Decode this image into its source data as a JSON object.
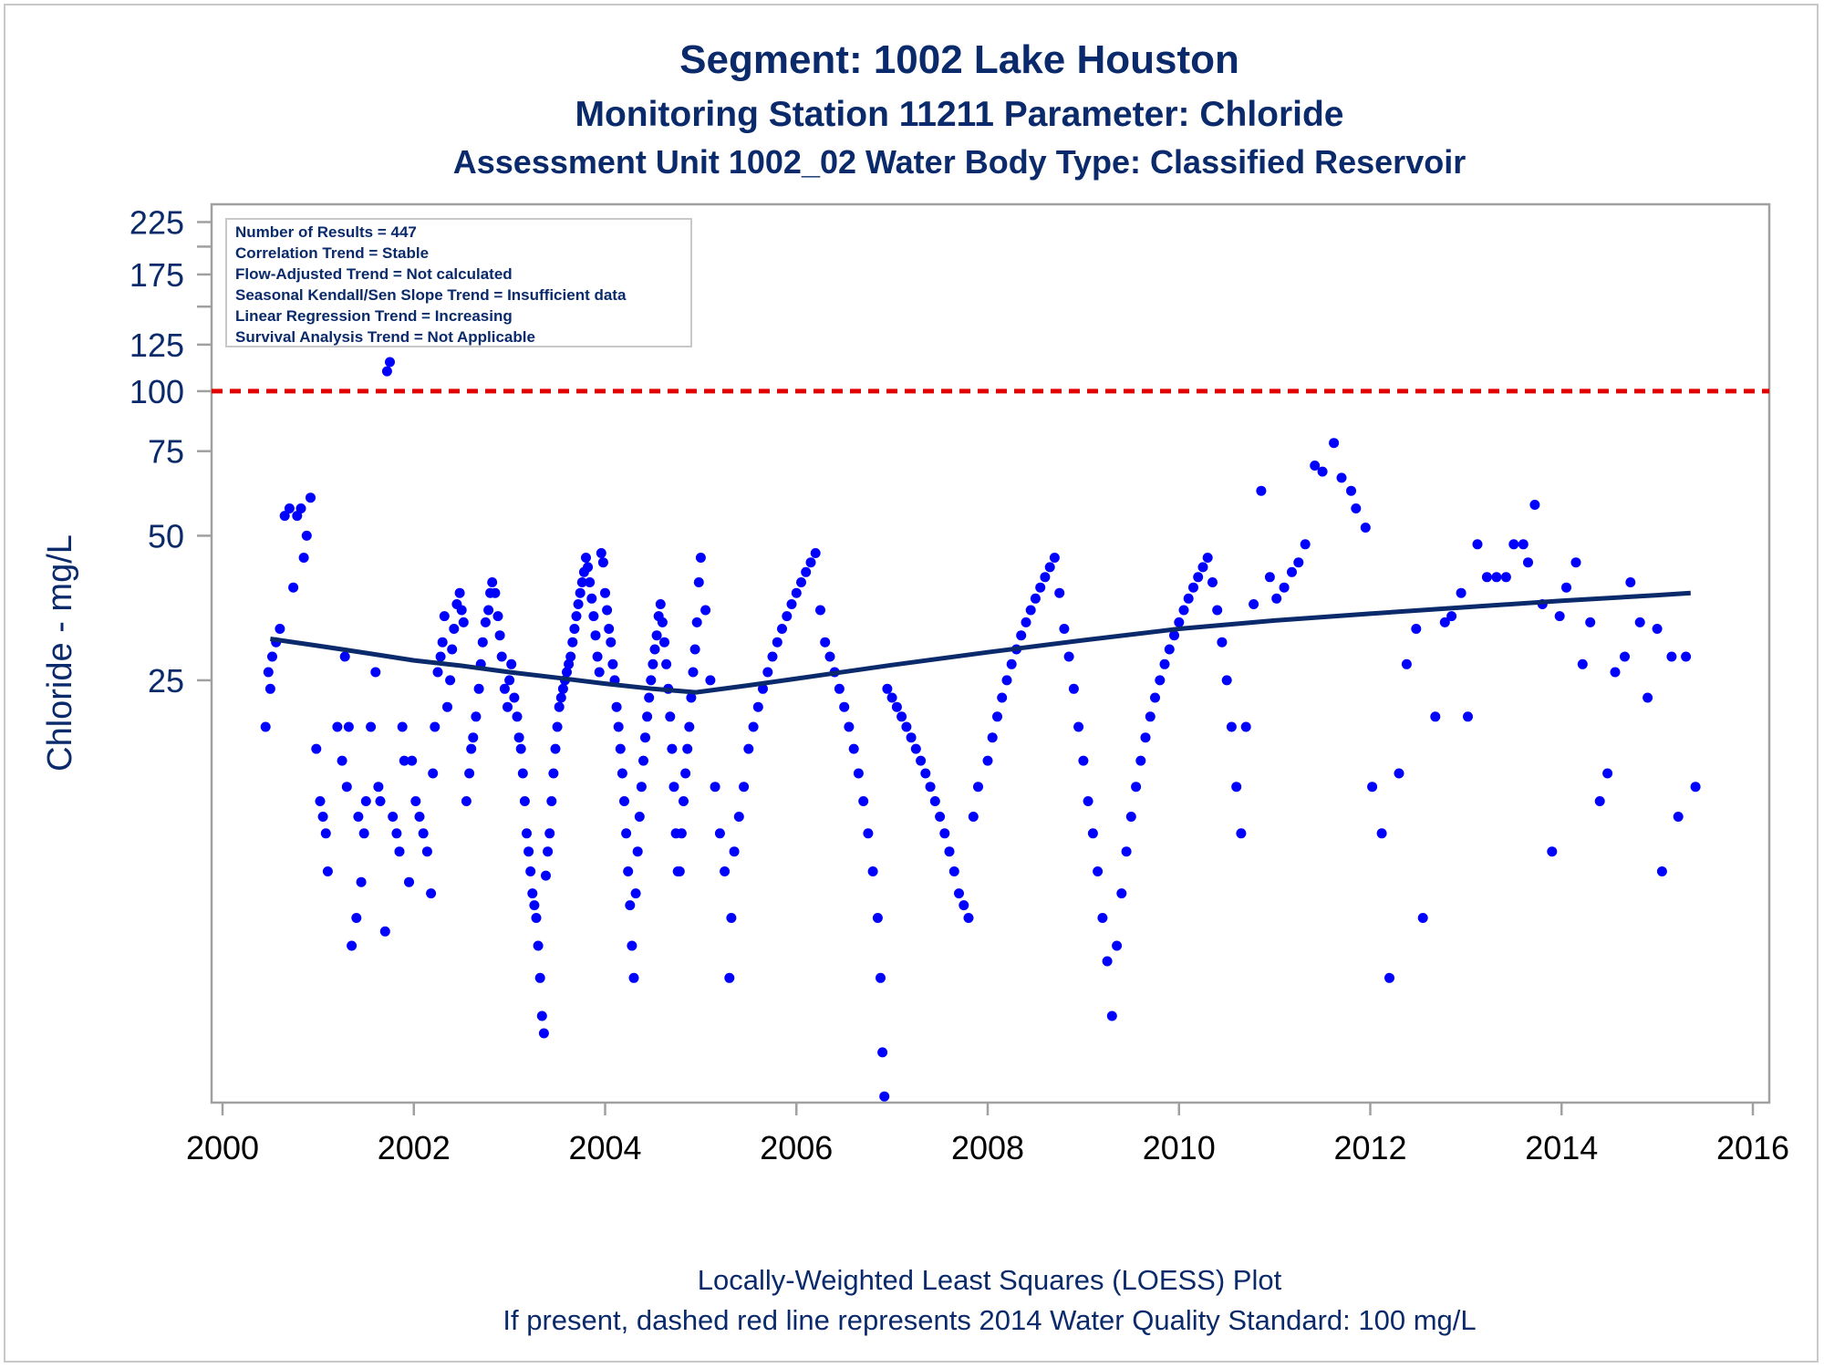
{
  "colors": {
    "title": "#0a2a6b",
    "points": "#0000ff",
    "loess": "#0a2a6b",
    "standard": "#e00000",
    "frame": "#a0a0a0"
  },
  "info_box": [
    "Number of Results = 447",
    "Correlation Trend = Stable",
    "Flow-Adjusted Trend = Not calculated",
    "Seasonal Kendall/Sen Slope Trend = Insufficient data",
    "Linear Regression Trend = Increasing",
    "Survival Analysis Trend = Not Applicable"
  ],
  "footer": {
    "line1": "Locally-Weighted Least Squares (LOESS) Plot",
    "line2": "If present, dashed red line represents 2014 Water Quality Standard: 100    mg/L"
  },
  "chart_data": {
    "type": "scatter",
    "title": "Segment: 1002  Lake Houston",
    "subtitle": "Monitoring Station 11211 Parameter: Chloride",
    "subtitle2": "Assessment Unit 1002_02   Water Body Type: Classified Reservoir",
    "xlabel": "",
    "ylabel": "Chloride - mg/L",
    "y_scale": "log",
    "xlim": [
      2000,
      2016
    ],
    "ylim": [
      3.3,
      245
    ],
    "x_ticks": [
      2000,
      2002,
      2004,
      2006,
      2008,
      2010,
      2012,
      2014,
      2016
    ],
    "y_ticks": [
      25,
      50,
      75,
      100,
      125,
      175,
      225
    ],
    "y_minor_ticks": [
      150,
      200
    ],
    "grid": false,
    "reference_line": {
      "value": 100,
      "style": "dashed"
    },
    "loess": {
      "x": [
        2000.5,
        2001.0,
        2001.5,
        2002.0,
        2002.5,
        2003.0,
        2003.5,
        2004.0,
        2004.5,
        2004.95,
        2005.5,
        2006.0,
        2007.0,
        2008.0,
        2009.0,
        2010.0,
        2011.0,
        2012.0,
        2013.0,
        2014.0,
        2015.0,
        2015.35
      ],
      "y": [
        30.5,
        29.5,
        28.5,
        27.5,
        26.8,
        26.0,
        25.3,
        24.6,
        24.0,
        23.6,
        24.4,
        25.2,
        26.9,
        28.6,
        30.3,
        32.0,
        33.3,
        34.4,
        35.5,
        36.6,
        37.6,
        38.0
      ]
    },
    "points": [
      [
        2000.45,
        20
      ],
      [
        2000.48,
        26
      ],
      [
        2000.5,
        24
      ],
      [
        2000.52,
        28
      ],
      [
        2000.56,
        30
      ],
      [
        2000.6,
        32
      ],
      [
        2000.65,
        55
      ],
      [
        2000.7,
        57
      ],
      [
        2000.74,
        39
      ],
      [
        2000.78,
        55
      ],
      [
        2000.82,
        57
      ],
      [
        2000.85,
        45
      ],
      [
        2000.88,
        50
      ],
      [
        2000.92,
        60
      ],
      [
        2000.98,
        18
      ],
      [
        2001.02,
        14
      ],
      [
        2001.05,
        13
      ],
      [
        2001.08,
        12
      ],
      [
        2001.1,
        10
      ],
      [
        2001.2,
        20
      ],
      [
        2001.25,
        17
      ],
      [
        2001.28,
        28
      ],
      [
        2001.3,
        15
      ],
      [
        2001.32,
        20
      ],
      [
        2001.35,
        7
      ],
      [
        2001.4,
        8
      ],
      [
        2001.42,
        13
      ],
      [
        2001.45,
        9.5
      ],
      [
        2001.48,
        12
      ],
      [
        2001.5,
        14
      ],
      [
        2001.55,
        20
      ],
      [
        2001.6,
        26
      ],
      [
        2001.63,
        15
      ],
      [
        2001.65,
        14
      ],
      [
        2001.7,
        7.5
      ],
      [
        2001.72,
        110
      ],
      [
        2001.75,
        115
      ],
      [
        2001.78,
        13
      ],
      [
        2001.82,
        12
      ],
      [
        2001.85,
        11
      ],
      [
        2001.88,
        20
      ],
      [
        2001.9,
        17
      ],
      [
        2001.95,
        9.5
      ],
      [
        2001.98,
        17
      ],
      [
        2002.02,
        14
      ],
      [
        2002.06,
        13
      ],
      [
        2002.1,
        12
      ],
      [
        2002.14,
        11
      ],
      [
        2002.18,
        9
      ],
      [
        2002.2,
        16
      ],
      [
        2002.22,
        20
      ],
      [
        2002.25,
        26
      ],
      [
        2002.28,
        28
      ],
      [
        2002.3,
        30
      ],
      [
        2002.32,
        34
      ],
      [
        2002.35,
        22
      ],
      [
        2002.38,
        25
      ],
      [
        2002.4,
        29
      ],
      [
        2002.42,
        32
      ],
      [
        2002.45,
        36
      ],
      [
        2002.48,
        38
      ],
      [
        2002.5,
        35
      ],
      [
        2002.52,
        33
      ],
      [
        2002.55,
        14
      ],
      [
        2002.58,
        16
      ],
      [
        2002.6,
        18
      ],
      [
        2002.62,
        19
      ],
      [
        2002.65,
        21
      ],
      [
        2002.68,
        24
      ],
      [
        2002.7,
        27
      ],
      [
        2002.72,
        30
      ],
      [
        2002.75,
        33
      ],
      [
        2002.78,
        35
      ],
      [
        2002.8,
        38
      ],
      [
        2002.82,
        40
      ],
      [
        2002.85,
        38
      ],
      [
        2002.88,
        34
      ],
      [
        2002.9,
        31
      ],
      [
        2002.92,
        28
      ],
      [
        2002.95,
        24
      ],
      [
        2002.98,
        22
      ],
      [
        2003.0,
        25
      ],
      [
        2003.02,
        27
      ],
      [
        2003.05,
        23
      ],
      [
        2003.08,
        21
      ],
      [
        2003.1,
        19
      ],
      [
        2003.12,
        18
      ],
      [
        2003.14,
        16
      ],
      [
        2003.16,
        14
      ],
      [
        2003.18,
        12
      ],
      [
        2003.2,
        11
      ],
      [
        2003.22,
        10
      ],
      [
        2003.24,
        9
      ],
      [
        2003.26,
        8.5
      ],
      [
        2003.28,
        8
      ],
      [
        2003.3,
        7
      ],
      [
        2003.32,
        6
      ],
      [
        2003.34,
        5
      ],
      [
        2003.36,
        4.6
      ],
      [
        2003.38,
        9.8
      ],
      [
        2003.4,
        11
      ],
      [
        2003.42,
        12
      ],
      [
        2003.44,
        14
      ],
      [
        2003.46,
        16
      ],
      [
        2003.48,
        18
      ],
      [
        2003.5,
        20
      ],
      [
        2003.52,
        22
      ],
      [
        2003.54,
        23
      ],
      [
        2003.56,
        24
      ],
      [
        2003.58,
        25
      ],
      [
        2003.6,
        26
      ],
      [
        2003.62,
        27
      ],
      [
        2003.64,
        28
      ],
      [
        2003.66,
        30
      ],
      [
        2003.68,
        32
      ],
      [
        2003.7,
        34
      ],
      [
        2003.72,
        36
      ],
      [
        2003.74,
        38
      ],
      [
        2003.76,
        40
      ],
      [
        2003.78,
        42
      ],
      [
        2003.8,
        45
      ],
      [
        2003.82,
        43
      ],
      [
        2003.84,
        40
      ],
      [
        2003.86,
        37
      ],
      [
        2003.88,
        34
      ],
      [
        2003.9,
        31
      ],
      [
        2003.92,
        28
      ],
      [
        2003.94,
        26
      ],
      [
        2003.96,
        46
      ],
      [
        2003.98,
        44
      ],
      [
        2004.0,
        38
      ],
      [
        2004.02,
        35
      ],
      [
        2004.04,
        32
      ],
      [
        2004.06,
        30
      ],
      [
        2004.08,
        27
      ],
      [
        2004.1,
        25
      ],
      [
        2004.12,
        22
      ],
      [
        2004.14,
        20
      ],
      [
        2004.16,
        18
      ],
      [
        2004.18,
        16
      ],
      [
        2004.2,
        14
      ],
      [
        2004.22,
        12
      ],
      [
        2004.24,
        10
      ],
      [
        2004.26,
        8.5
      ],
      [
        2004.28,
        7
      ],
      [
        2004.3,
        6
      ],
      [
        2004.32,
        9
      ],
      [
        2004.34,
        11
      ],
      [
        2004.36,
        13
      ],
      [
        2004.38,
        15
      ],
      [
        2004.4,
        17
      ],
      [
        2004.42,
        19
      ],
      [
        2004.44,
        21
      ],
      [
        2004.46,
        23
      ],
      [
        2004.48,
        25
      ],
      [
        2004.5,
        27
      ],
      [
        2004.52,
        29
      ],
      [
        2004.54,
        31
      ],
      [
        2004.56,
        34
      ],
      [
        2004.58,
        36
      ],
      [
        2004.6,
        33
      ],
      [
        2004.62,
        30
      ],
      [
        2004.64,
        27
      ],
      [
        2004.66,
        24
      ],
      [
        2004.68,
        21
      ],
      [
        2004.7,
        18
      ],
      [
        2004.72,
        15
      ],
      [
        2004.74,
        12
      ],
      [
        2004.76,
        10
      ],
      [
        2004.78,
        10
      ],
      [
        2004.8,
        12
      ],
      [
        2004.82,
        14
      ],
      [
        2004.84,
        16
      ],
      [
        2004.86,
        18
      ],
      [
        2004.88,
        20
      ],
      [
        2004.9,
        23
      ],
      [
        2004.92,
        26
      ],
      [
        2004.94,
        29
      ],
      [
        2004.96,
        33
      ],
      [
        2004.98,
        40
      ],
      [
        2005.0,
        45
      ],
      [
        2005.05,
        35
      ],
      [
        2005.1,
        25
      ],
      [
        2005.15,
        15
      ],
      [
        2005.2,
        12
      ],
      [
        2005.25,
        10
      ],
      [
        2005.3,
        6
      ],
      [
        2005.32,
        8
      ],
      [
        2005.35,
        11
      ],
      [
        2005.4,
        13
      ],
      [
        2005.45,
        15
      ],
      [
        2005.5,
        18
      ],
      [
        2005.55,
        20
      ],
      [
        2005.6,
        22
      ],
      [
        2005.65,
        24
      ],
      [
        2005.7,
        26
      ],
      [
        2005.75,
        28
      ],
      [
        2005.8,
        30
      ],
      [
        2005.85,
        32
      ],
      [
        2005.9,
        34
      ],
      [
        2005.95,
        36
      ],
      [
        2006.0,
        38
      ],
      [
        2006.05,
        40
      ],
      [
        2006.1,
        42
      ],
      [
        2006.15,
        44
      ],
      [
        2006.2,
        46
      ],
      [
        2006.25,
        35
      ],
      [
        2006.3,
        30
      ],
      [
        2006.35,
        28
      ],
      [
        2006.4,
        26
      ],
      [
        2006.45,
        24
      ],
      [
        2006.5,
        22
      ],
      [
        2006.55,
        20
      ],
      [
        2006.6,
        18
      ],
      [
        2006.65,
        16
      ],
      [
        2006.7,
        14
      ],
      [
        2006.75,
        12
      ],
      [
        2006.8,
        10
      ],
      [
        2006.85,
        8
      ],
      [
        2006.88,
        6
      ],
      [
        2006.9,
        4.2
      ],
      [
        2006.92,
        3.4
      ],
      [
        2006.95,
        24
      ],
      [
        2007.0,
        23
      ],
      [
        2007.05,
        22
      ],
      [
        2007.1,
        21
      ],
      [
        2007.15,
        20
      ],
      [
        2007.2,
        19
      ],
      [
        2007.25,
        18
      ],
      [
        2007.3,
        17
      ],
      [
        2007.35,
        16
      ],
      [
        2007.4,
        15
      ],
      [
        2007.45,
        14
      ],
      [
        2007.5,
        13
      ],
      [
        2007.55,
        12
      ],
      [
        2007.6,
        11
      ],
      [
        2007.65,
        10
      ],
      [
        2007.7,
        9
      ],
      [
        2007.75,
        8.5
      ],
      [
        2007.8,
        8
      ],
      [
        2007.85,
        13
      ],
      [
        2007.9,
        15
      ],
      [
        2008.0,
        17
      ],
      [
        2008.05,
        19
      ],
      [
        2008.1,
        21
      ],
      [
        2008.15,
        23
      ],
      [
        2008.2,
        25
      ],
      [
        2008.25,
        27
      ],
      [
        2008.3,
        29
      ],
      [
        2008.35,
        31
      ],
      [
        2008.4,
        33
      ],
      [
        2008.45,
        35
      ],
      [
        2008.5,
        37
      ],
      [
        2008.55,
        39
      ],
      [
        2008.6,
        41
      ],
      [
        2008.65,
        43
      ],
      [
        2008.7,
        45
      ],
      [
        2008.75,
        38
      ],
      [
        2008.8,
        32
      ],
      [
        2008.85,
        28
      ],
      [
        2008.9,
        24
      ],
      [
        2008.95,
        20
      ],
      [
        2009.0,
        17
      ],
      [
        2009.05,
        14
      ],
      [
        2009.1,
        12
      ],
      [
        2009.15,
        10
      ],
      [
        2009.2,
        8
      ],
      [
        2009.25,
        6.5
      ],
      [
        2009.3,
        5
      ],
      [
        2009.35,
        7
      ],
      [
        2009.4,
        9
      ],
      [
        2009.45,
        11
      ],
      [
        2009.5,
        13
      ],
      [
        2009.55,
        15
      ],
      [
        2009.6,
        17
      ],
      [
        2009.65,
        19
      ],
      [
        2009.7,
        21
      ],
      [
        2009.75,
        23
      ],
      [
        2009.8,
        25
      ],
      [
        2009.85,
        27
      ],
      [
        2009.9,
        29
      ],
      [
        2009.95,
        31
      ],
      [
        2010.0,
        33
      ],
      [
        2010.05,
        35
      ],
      [
        2010.1,
        37
      ],
      [
        2010.15,
        39
      ],
      [
        2010.2,
        41
      ],
      [
        2010.25,
        43
      ],
      [
        2010.3,
        45
      ],
      [
        2010.35,
        40
      ],
      [
        2010.4,
        35
      ],
      [
        2010.45,
        30
      ],
      [
        2010.5,
        25
      ],
      [
        2010.55,
        20
      ],
      [
        2010.6,
        15
      ],
      [
        2010.65,
        12
      ],
      [
        2010.7,
        20
      ],
      [
        2010.78,
        36
      ],
      [
        2010.86,
        62
      ],
      [
        2010.95,
        41
      ],
      [
        2011.02,
        37
      ],
      [
        2011.1,
        39
      ],
      [
        2011.18,
        42
      ],
      [
        2011.25,
        44
      ],
      [
        2011.32,
        48
      ],
      [
        2011.42,
        70
      ],
      [
        2011.5,
        68
      ],
      [
        2011.62,
        78
      ],
      [
        2011.7,
        66
      ],
      [
        2011.8,
        62
      ],
      [
        2011.85,
        57
      ],
      [
        2011.95,
        52
      ],
      [
        2012.02,
        15
      ],
      [
        2012.12,
        12
      ],
      [
        2012.2,
        6
      ],
      [
        2012.3,
        16
      ],
      [
        2012.38,
        27
      ],
      [
        2012.48,
        32
      ],
      [
        2012.55,
        8
      ],
      [
        2012.68,
        21
      ],
      [
        2012.78,
        33
      ],
      [
        2012.85,
        34
      ],
      [
        2012.95,
        38
      ],
      [
        2013.02,
        21
      ],
      [
        2013.12,
        48
      ],
      [
        2013.22,
        41
      ],
      [
        2013.32,
        41
      ],
      [
        2013.42,
        41
      ],
      [
        2013.5,
        48
      ],
      [
        2013.6,
        48
      ],
      [
        2013.65,
        44
      ],
      [
        2013.72,
        58
      ],
      [
        2013.8,
        36
      ],
      [
        2013.9,
        11
      ],
      [
        2013.98,
        34
      ],
      [
        2014.05,
        39
      ],
      [
        2014.15,
        44
      ],
      [
        2014.22,
        27
      ],
      [
        2014.3,
        33
      ],
      [
        2014.4,
        14
      ],
      [
        2014.48,
        16
      ],
      [
        2014.56,
        26
      ],
      [
        2014.66,
        28
      ],
      [
        2014.72,
        40
      ],
      [
        2014.82,
        33
      ],
      [
        2014.9,
        23
      ],
      [
        2015.0,
        32
      ],
      [
        2015.05,
        10
      ],
      [
        2015.15,
        28
      ],
      [
        2015.22,
        13
      ],
      [
        2015.3,
        28
      ],
      [
        2015.4,
        15
      ]
    ]
  }
}
